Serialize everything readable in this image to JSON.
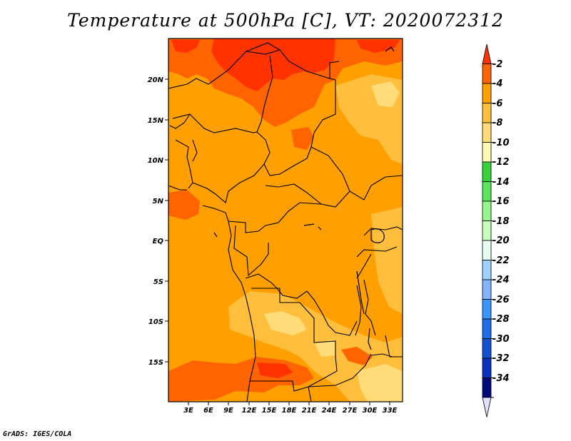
{
  "title": "Temperature at 500hPa [C], VT: 2020072312",
  "footer": "GrADS: IGES/COLA",
  "map": {
    "lat_labels": [
      "20N",
      "15N",
      "10N",
      "5N",
      "EQ",
      "5S",
      "10S",
      "15S"
    ],
    "lon_labels": [
      "3E",
      "6E",
      "9E",
      "12E",
      "15E",
      "18E",
      "21E",
      "24E",
      "27E",
      "30E",
      "33E"
    ],
    "base_color": "#ffa000"
  },
  "colorbar": {
    "labels": [
      "-2",
      "-4",
      "-6",
      "-8",
      "-10",
      "-12",
      "-14",
      "-16",
      "-18",
      "-20",
      "-22",
      "-24",
      "-26",
      "-28",
      "-30",
      "-32",
      "-34"
    ],
    "colors": [
      "#ff3200",
      "#ff6400",
      "#ffa000",
      "#ffbe3c",
      "#ffdc78",
      "#fffab4",
      "#37d23c",
      "#5ae65a",
      "#96f58c",
      "#c8ffbe",
      "#e6fff0",
      "#a0d2ff",
      "#82b4ff",
      "#3c96ff",
      "#1e6eeb",
      "#1450d2",
      "#0a32be",
      "#000a78",
      "#e0e0ff"
    ]
  }
}
